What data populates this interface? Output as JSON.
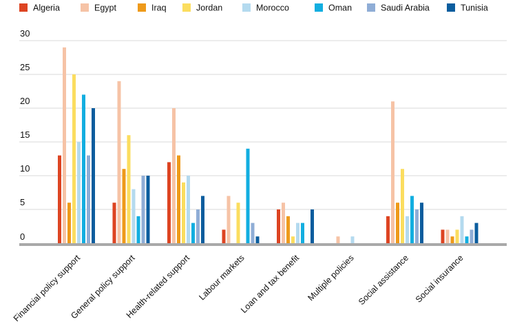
{
  "chart_data": {
    "type": "bar",
    "title": "",
    "xlabel": "",
    "ylabel": "",
    "ylim": [
      0,
      30
    ],
    "yticks": [
      0,
      5,
      10,
      15,
      20,
      25,
      30
    ],
    "grid": true,
    "legend_position": "top",
    "categories": [
      "Financial policy support",
      "General policy support",
      "Health-related support",
      "Labour markets",
      "Loan and tax benefit",
      "Multiple policies",
      "Social assistance",
      "Social insurance"
    ],
    "series": [
      {
        "name": "Algeria",
        "color": "#dd4422",
        "values": [
          13,
          6,
          12,
          2,
          5,
          0,
          4,
          2
        ]
      },
      {
        "name": "Egypt",
        "color": "#f6c3a6",
        "values": [
          29,
          24,
          20,
          7,
          6,
          1,
          21,
          2
        ]
      },
      {
        "name": "Iraq",
        "color": "#ee9a1a",
        "values": [
          6,
          11,
          13,
          0,
          4,
          0,
          6,
          1
        ]
      },
      {
        "name": "Jordan",
        "color": "#fbdd5f",
        "values": [
          25,
          16,
          9,
          6,
          1,
          0,
          11,
          2
        ]
      },
      {
        "name": "Morocco",
        "color": "#b4daef",
        "values": [
          15,
          8,
          10,
          0,
          3,
          1,
          4,
          4
        ]
      },
      {
        "name": "Oman",
        "color": "#12aee0",
        "values": [
          22,
          4,
          3,
          14,
          3,
          0,
          7,
          1
        ]
      },
      {
        "name": "Saudi Arabia",
        "color": "#8fadd6",
        "values": [
          13,
          10,
          5,
          3,
          0,
          0,
          5,
          2
        ]
      },
      {
        "name": "Tunisia",
        "color": "#0b5d9e",
        "values": [
          20,
          10,
          7,
          1,
          5,
          0,
          6,
          3
        ]
      }
    ]
  }
}
